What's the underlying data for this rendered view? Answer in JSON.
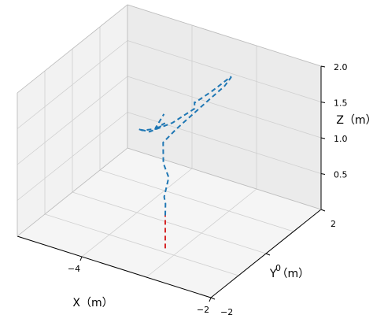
{
  "chart_data": {
    "type": "line3d",
    "xlabel": "X（m）",
    "ylabel": "Y（m）",
    "zlabel": "Z（m）",
    "xlim": [
      -5,
      -2
    ],
    "ylim": [
      -2,
      2
    ],
    "zlim": [
      0,
      2
    ],
    "x_ticks": [
      {
        "value": -2,
        "label": "−2"
      },
      {
        "value": -4,
        "label": "−4"
      }
    ],
    "y_ticks": [
      {
        "value": -2,
        "label": "−2"
      },
      {
        "value": 0,
        "label": "0"
      },
      {
        "value": 2,
        "label": "2"
      }
    ],
    "z_ticks": [
      {
        "value": 0.5,
        "label": "0.5"
      },
      {
        "value": 1.0,
        "label": "1.0"
      },
      {
        "value": 1.5,
        "label": "1.5"
      },
      {
        "value": 2.0,
        "label": "2.0"
      }
    ],
    "grid": true,
    "series": [
      {
        "style": "dashed",
        "color": "#1f77b4",
        "points": [
          [
            -3.19,
            -0.87,
            0.46
          ],
          [
            -3.16,
            -0.93,
            0.65
          ],
          [
            -3.16,
            -0.98,
            0.76
          ],
          [
            -3.14,
            -0.86,
            1.0
          ],
          [
            -3.18,
            -0.96,
            1.22
          ],
          [
            -3.41,
            -0.43,
            1.28
          ],
          [
            -3.44,
            0.12,
            1.29
          ],
          [
            -3.46,
            1.27,
            1.31
          ],
          [
            -3.44,
            1.87,
            1.35
          ],
          [
            -3.45,
            2.13,
            1.39
          ],
          [
            -3.43,
            2.07,
            1.42
          ],
          [
            -3.42,
            1.35,
            1.44
          ],
          [
            -3.45,
            0.82,
            1.44
          ],
          [
            -3.47,
            0.85,
            1.43
          ],
          [
            -3.46,
            0.83,
            1.35
          ],
          [
            -3.51,
            0.14,
            1.35
          ],
          [
            -3.6,
            -0.48,
            1.39
          ],
          [
            -3.66,
            -0.74,
            1.49
          ],
          [
            -3.61,
            -0.72,
            1.48
          ],
          [
            -3.53,
            -0.45,
            1.44
          ],
          [
            -3.53,
            -0.1,
            1.41
          ],
          [
            -3.33,
            -0.91,
            1.62
          ],
          [
            -3.18,
            -1.24,
            1.8
          ],
          [
            -3.12,
            -1.08,
            1.96
          ]
        ]
      },
      {
        "style": "dashed",
        "color": "#d62728",
        "points": [
          [
            -3.19,
            -0.87,
            0.0
          ],
          [
            -3.19,
            -0.87,
            0.46
          ]
        ]
      }
    ]
  }
}
